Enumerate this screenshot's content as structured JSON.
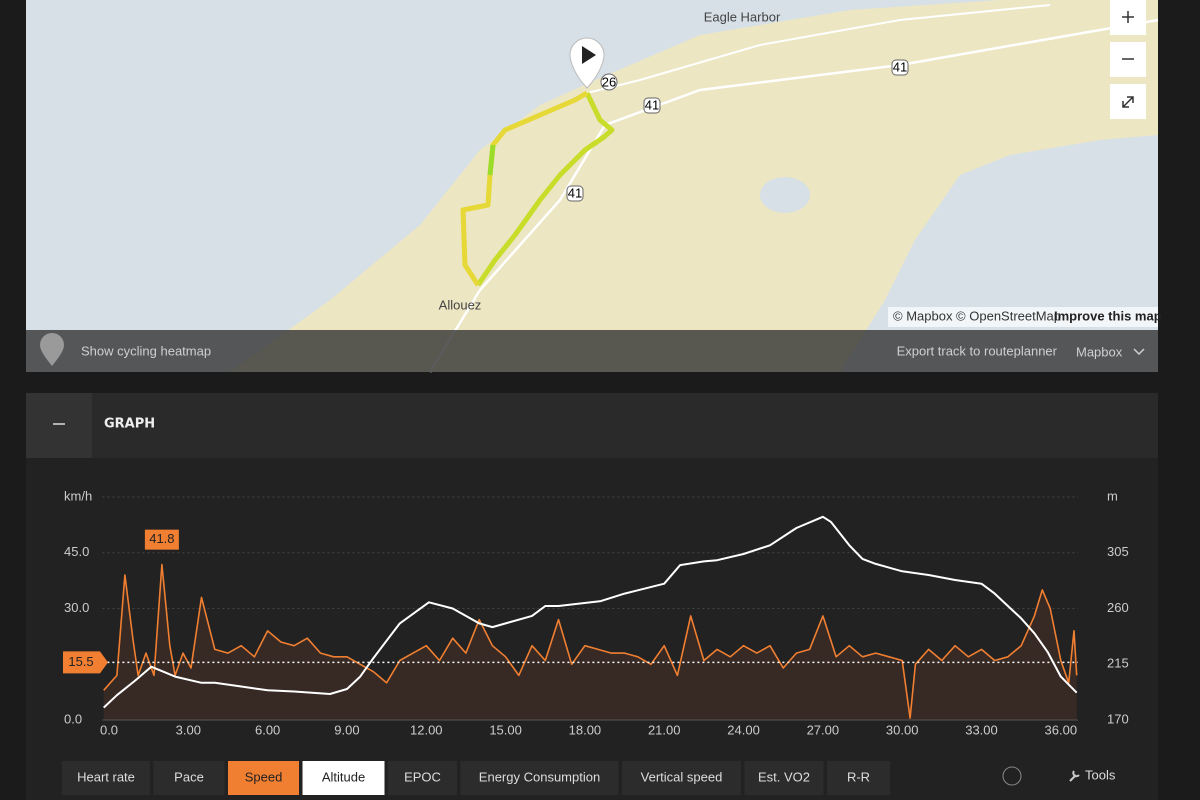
{
  "map": {
    "places": [
      "Eagle Harbor",
      "Allouez"
    ],
    "road_labels": [
      "26",
      "41",
      "41",
      "41"
    ],
    "attribution": "© Mapbox © OpenStreetMap",
    "improve_link": "Improve this map",
    "heatmap_toggle": "Show cycling heatmap",
    "export_link": "Export track to routeplanner",
    "style_selector": "Mapbox"
  },
  "graph": {
    "title": "GRAPH",
    "tools": "Tools",
    "tabs": [
      {
        "label": "Heart rate",
        "selected": false
      },
      {
        "label": "Pace",
        "selected": false
      },
      {
        "label": "Speed",
        "selected": true,
        "color": "#f07f32"
      },
      {
        "label": "Altitude",
        "selected": true,
        "color": "#ffffff"
      },
      {
        "label": "EPOC",
        "selected": false
      },
      {
        "label": "Energy Consumption",
        "selected": false
      },
      {
        "label": "Vertical speed",
        "selected": false
      },
      {
        "label": "Est. VO2",
        "selected": false
      },
      {
        "label": "R-R",
        "selected": false
      }
    ]
  },
  "chart_data": {
    "type": "line",
    "y_label": "km/h",
    "y2_label": "m",
    "xlim": [
      -0.25,
      36.65
    ],
    "xticks": [
      {
        "value": 0,
        "label": "0.0"
      },
      {
        "value": 3,
        "label": "3.00"
      },
      {
        "value": 6,
        "label": "6.00"
      },
      {
        "value": 9,
        "label": "9.00"
      },
      {
        "value": 12,
        "label": "12.00"
      },
      {
        "value": 15,
        "label": "15.00"
      },
      {
        "value": 18,
        "label": "18.00"
      },
      {
        "value": 21,
        "label": "21.00"
      },
      {
        "value": 24,
        "label": "24.00"
      },
      {
        "value": 27,
        "label": "27.00"
      },
      {
        "value": 30,
        "label": "30.00"
      },
      {
        "value": 33,
        "label": "33.00"
      },
      {
        "value": 36,
        "label": "36.00"
      }
    ],
    "ylim": [
      0,
      60
    ],
    "yticks": [
      {
        "value": 0,
        "label": "0.0"
      },
      {
        "value": 30,
        "label": "30.0"
      },
      {
        "value": 45,
        "label": "45.0"
      }
    ],
    "y2lim": [
      170,
      350
    ],
    "y2ticks": [
      170,
      215,
      260,
      305
    ],
    "grid": true,
    "average": 15.5,
    "max": {
      "x": 2.0,
      "value": 41.8
    },
    "series": [
      {
        "color": "#f07f32",
        "fill": "#3a2a24",
        "x": [
          -0.2,
          0.3,
          0.6,
          0.9,
          1.1,
          1.4,
          1.7,
          2.0,
          2.3,
          2.5,
          2.8,
          3.1,
          3.5,
          4.0,
          4.5,
          5.0,
          5.5,
          6.0,
          6.5,
          7.0,
          7.5,
          8.0,
          8.5,
          9.0,
          9.5,
          10.0,
          10.5,
          11.0,
          11.5,
          12.0,
          12.5,
          13.0,
          13.5,
          14.0,
          14.5,
          15.0,
          15.5,
          16.0,
          16.5,
          17.0,
          17.5,
          18.0,
          18.5,
          19.0,
          19.5,
          20.0,
          20.5,
          21.0,
          21.5,
          22.0,
          22.5,
          23.0,
          23.5,
          24.0,
          24.5,
          25.0,
          25.5,
          26.0,
          26.5,
          27.0,
          27.5,
          28.0,
          28.5,
          29.0,
          29.5,
          30.0,
          30.3,
          30.5,
          31.0,
          31.5,
          32.0,
          32.5,
          33.0,
          33.5,
          34.0,
          34.5,
          35.0,
          35.3,
          35.6,
          36.0,
          36.3,
          36.5,
          36.6
        ],
        "values": [
          8,
          12,
          39,
          22,
          12,
          18,
          12,
          41.8,
          20,
          12,
          18,
          14,
          33,
          19,
          18,
          20,
          17,
          24,
          21,
          20,
          22,
          18,
          17,
          17,
          15,
          13,
          10,
          16,
          18,
          20,
          16,
          22,
          18,
          27,
          20,
          17,
          12,
          20,
          16,
          27,
          15,
          20,
          19,
          18,
          18,
          17,
          15,
          20,
          12,
          28,
          16,
          19,
          17,
          20,
          18,
          20,
          14,
          18,
          19,
          28,
          17,
          20,
          17,
          18,
          17,
          16,
          0.5,
          15,
          19,
          16,
          20,
          17,
          19,
          16,
          17,
          20,
          28,
          35,
          30,
          16,
          10,
          24,
          12
        ]
      },
      {
        "color": "#ffffff",
        "axis": "y2",
        "x": [
          -0.2,
          0.3,
          1.0,
          1.6,
          2.5,
          3.5,
          4.0,
          5.0,
          6.0,
          7.0,
          8.36,
          9.0,
          9.5,
          10.0,
          10.5,
          11.0,
          12.1,
          13.0,
          14.0,
          14.5,
          15.0,
          16.0,
          16.5,
          17.0,
          18.6,
          19.5,
          21.0,
          21.6,
          22.5,
          23.0,
          24.0,
          25.0,
          26.0,
          27.0,
          27.3,
          28.0,
          28.5,
          29.0,
          30.0,
          31.0,
          32.0,
          33.0,
          33.5,
          34.0,
          34.5,
          35.0,
          35.5,
          36.0,
          36.6
        ],
        "values": [
          180,
          190,
          202,
          213,
          205,
          200,
          200,
          197,
          194,
          193,
          191,
          195,
          205,
          220,
          234,
          248,
          265,
          260,
          248,
          245,
          248,
          254,
          262,
          262,
          266,
          272,
          280,
          295,
          298,
          299,
          304,
          311,
          325,
          334,
          330,
          311,
          300,
          296,
          290,
          287,
          283,
          280,
          272,
          262,
          252,
          240,
          225,
          205,
          192
        ]
      }
    ]
  }
}
